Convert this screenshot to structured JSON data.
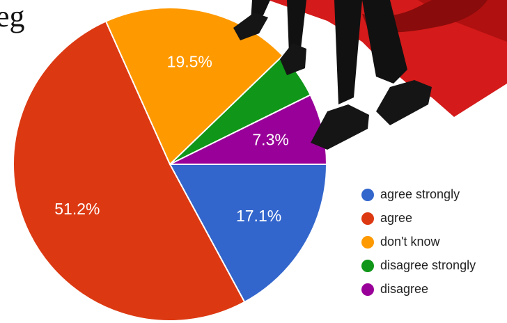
{
  "caption": "eg",
  "chart_data": {
    "type": "pie",
    "categories": [
      "agree strongly",
      "agree",
      "don't know",
      "disagree strongly",
      "disagree"
    ],
    "values": [
      17.1,
      51.2,
      19.5,
      4.9,
      7.3
    ],
    "value_labels": [
      "17.1%",
      "51.2%",
      "19.5%",
      null,
      "7.3%"
    ],
    "colors": [
      "#3366cc",
      "#dc3912",
      "#ff9900",
      "#109618",
      "#990099"
    ],
    "legend": "right"
  }
}
